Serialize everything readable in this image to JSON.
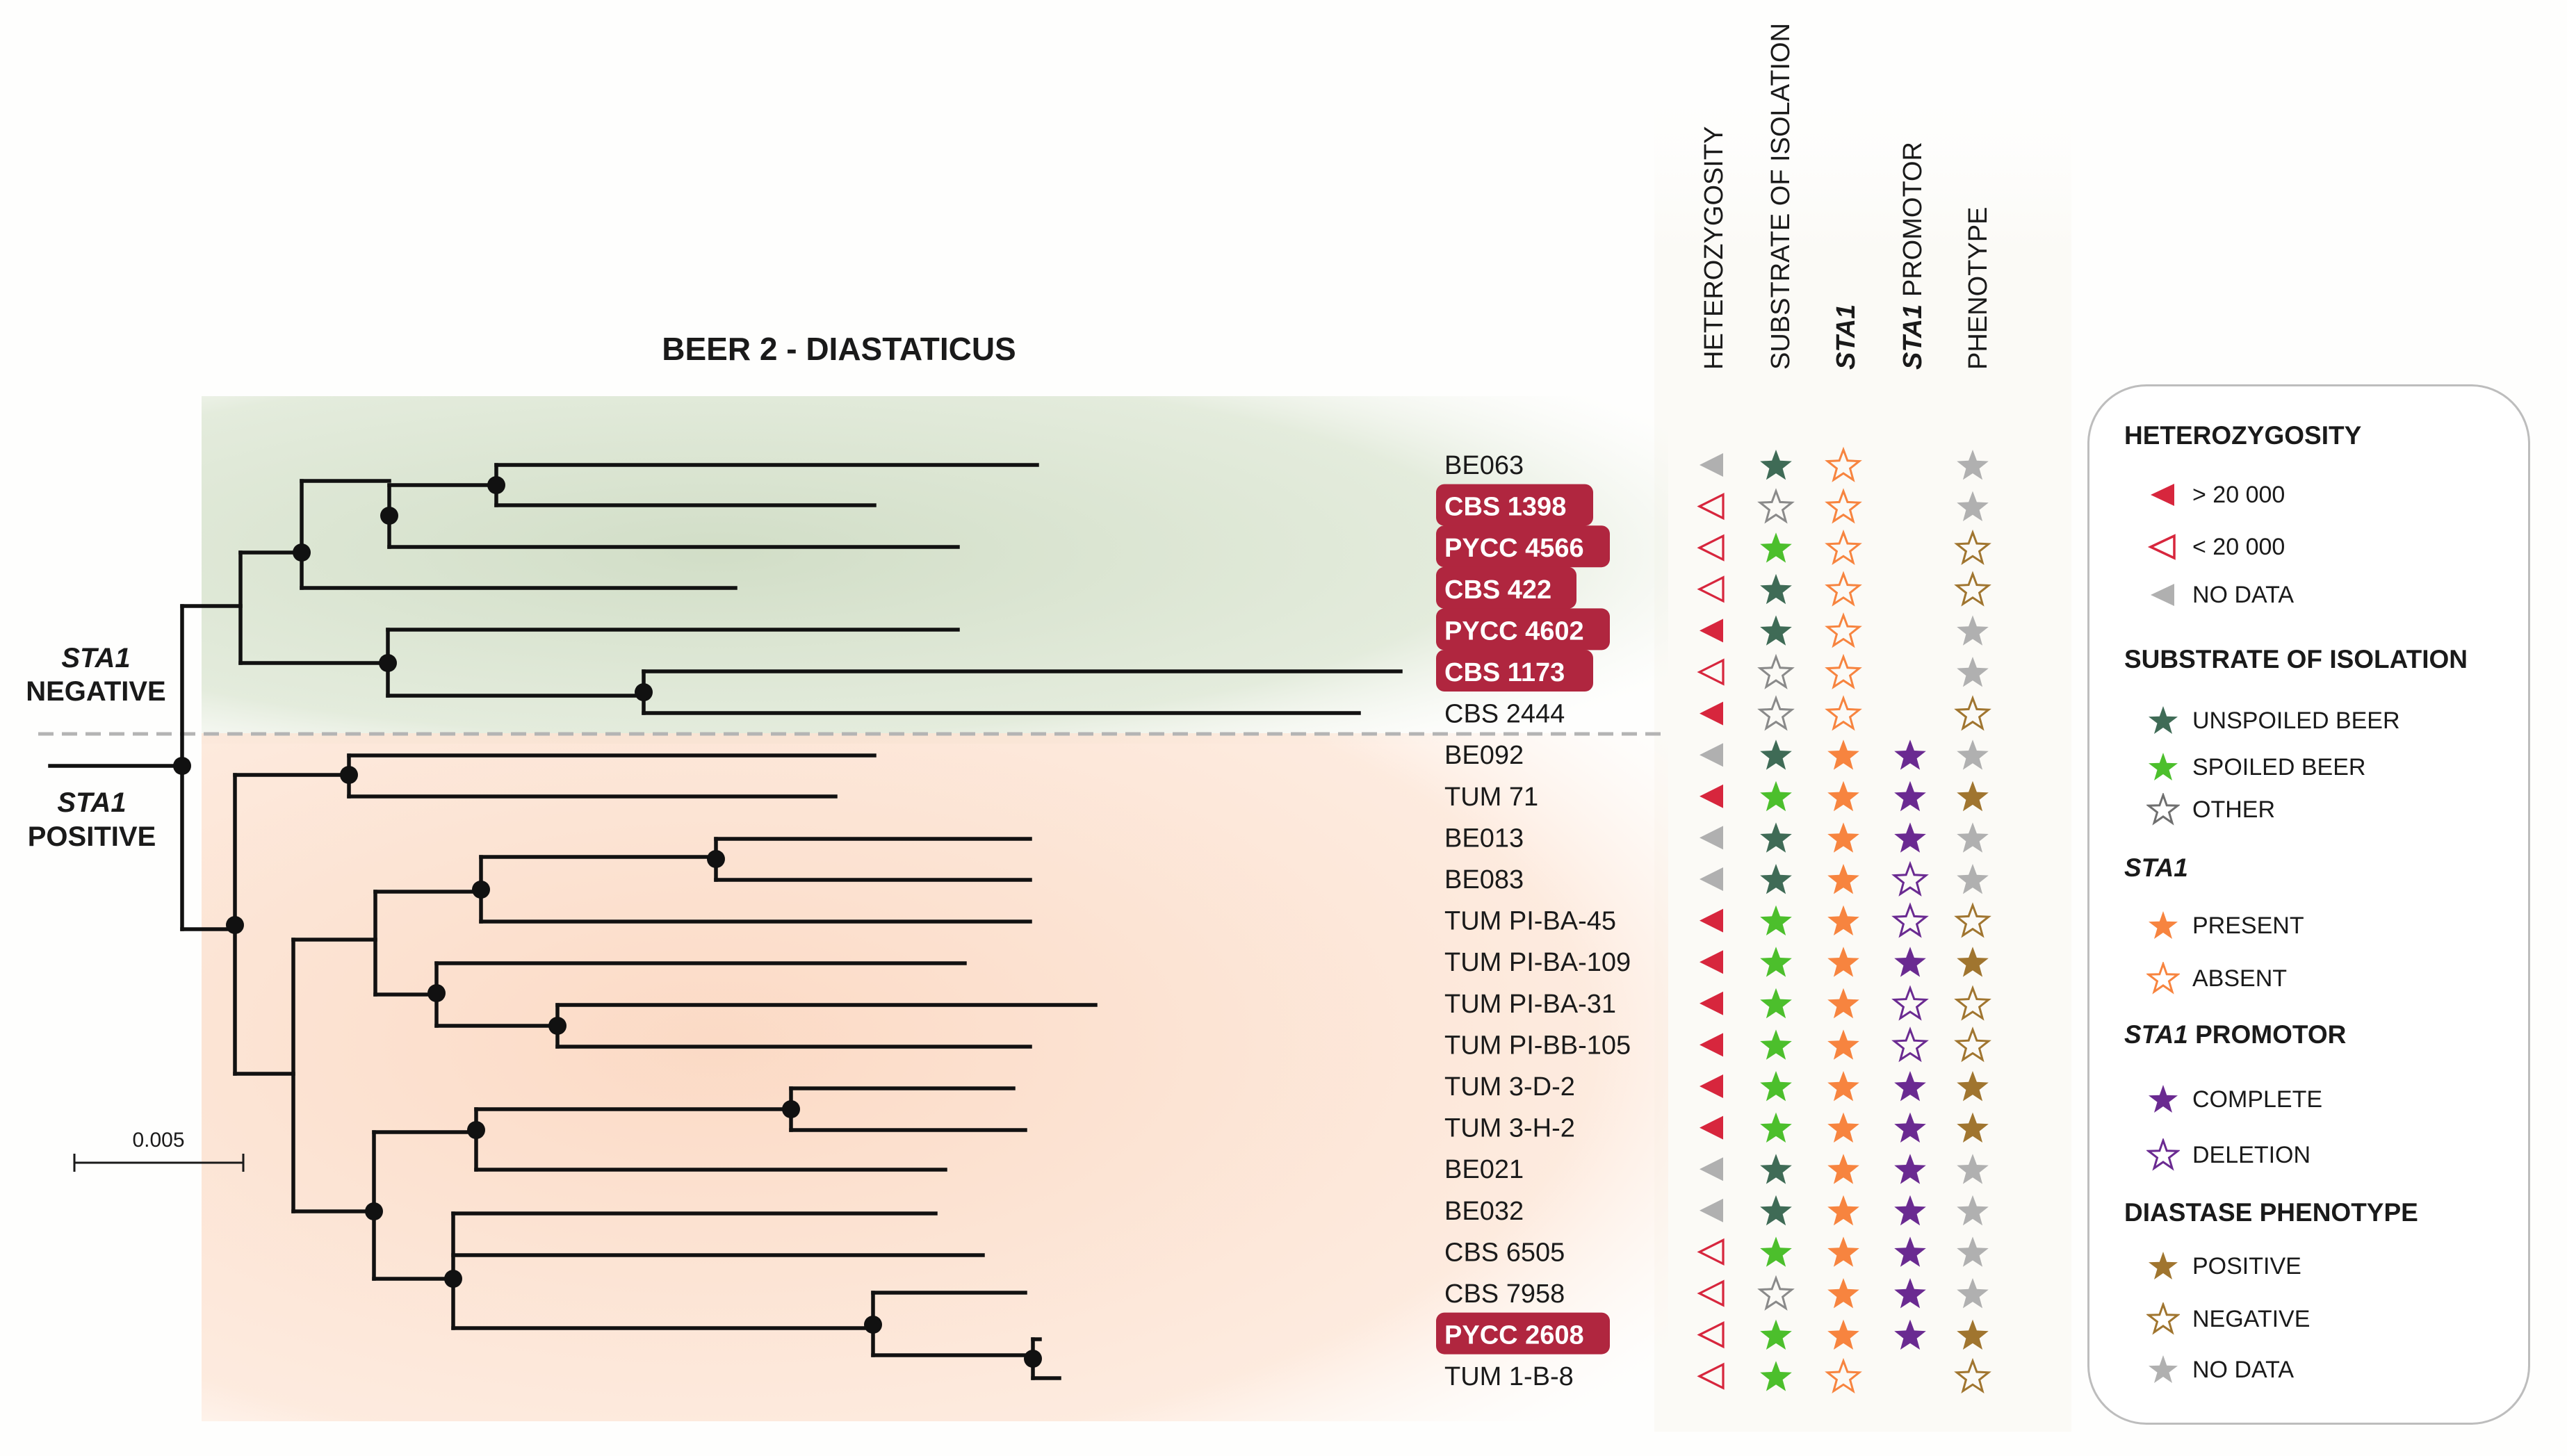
{
  "title": "BEER 2 - DIASTATICUS",
  "group_labels": {
    "negative_gene": "STA1",
    "negative_word": "NEGATIVE",
    "positive_gene": "STA1",
    "positive_word": "POSITIVE"
  },
  "scale_bar": "0.005",
  "column_headers": {
    "heterozygosity": "HETEROZYGOSITY",
    "substrate": "SUBSTRATE OF ISOLATION",
    "sta1": "STA1",
    "promotor_gene": "STA1",
    "promotor_word": " PROMOTOR",
    "phenotype": "PHENOTYPE"
  },
  "colors": {
    "het_high": "#d7263d",
    "het_nodata": "#b0b0b0",
    "unspoiled": "#3f6b56",
    "spoiled": "#4cbf2c",
    "other": "#8a8a8a",
    "sta1": "#f7843f",
    "promotor": "#6a2a91",
    "pheno_pos": "#a0752f",
    "pheno_nodata": "#b0b0b0",
    "highlight": "#b0263f",
    "negative_bg": "#dfe8d8",
    "positive_bg": "#fde3d3"
  },
  "strains": [
    {
      "name": "BE063",
      "highlight": false,
      "het": "nodata",
      "substrate": "unspoiled",
      "sta1": "absent",
      "promotor": "none",
      "phenotype": "nodata"
    },
    {
      "name": "CBS 1398",
      "highlight": true,
      "het": "low",
      "substrate": "other",
      "sta1": "absent",
      "promotor": "none",
      "phenotype": "nodata"
    },
    {
      "name": "PYCC 4566",
      "highlight": true,
      "het": "low",
      "substrate": "spoiled",
      "sta1": "absent",
      "promotor": "none",
      "phenotype": "negative"
    },
    {
      "name": "CBS 422",
      "highlight": true,
      "het": "low",
      "substrate": "unspoiled",
      "sta1": "absent",
      "promotor": "none",
      "phenotype": "negative"
    },
    {
      "name": "PYCC 4602",
      "highlight": true,
      "het": "high",
      "substrate": "unspoiled",
      "sta1": "absent",
      "promotor": "none",
      "phenotype": "nodata"
    },
    {
      "name": "CBS 1173",
      "highlight": true,
      "het": "low",
      "substrate": "other",
      "sta1": "absent",
      "promotor": "none",
      "phenotype": "nodata"
    },
    {
      "name": "CBS 2444",
      "highlight": false,
      "het": "high",
      "substrate": "other",
      "sta1": "absent",
      "promotor": "none",
      "phenotype": "negative"
    },
    {
      "name": "BE092",
      "highlight": false,
      "het": "nodata",
      "substrate": "unspoiled",
      "sta1": "present",
      "promotor": "complete",
      "phenotype": "nodata"
    },
    {
      "name": "TUM 71",
      "highlight": false,
      "het": "high",
      "substrate": "spoiled",
      "sta1": "present",
      "promotor": "complete",
      "phenotype": "positive"
    },
    {
      "name": "BE013",
      "highlight": false,
      "het": "nodata",
      "substrate": "unspoiled",
      "sta1": "present",
      "promotor": "complete",
      "phenotype": "nodata"
    },
    {
      "name": "BE083",
      "highlight": false,
      "het": "nodata",
      "substrate": "unspoiled",
      "sta1": "present",
      "promotor": "deletion",
      "phenotype": "nodata"
    },
    {
      "name": "TUM PI-BA-45",
      "highlight": false,
      "het": "high",
      "substrate": "spoiled",
      "sta1": "present",
      "promotor": "deletion",
      "phenotype": "negative"
    },
    {
      "name": "TUM PI-BA-109",
      "highlight": false,
      "het": "high",
      "substrate": "spoiled",
      "sta1": "present",
      "promotor": "complete",
      "phenotype": "positive"
    },
    {
      "name": "TUM PI-BA-31",
      "highlight": false,
      "het": "high",
      "substrate": "spoiled",
      "sta1": "present",
      "promotor": "deletion",
      "phenotype": "negative"
    },
    {
      "name": "TUM PI-BB-105",
      "highlight": false,
      "het": "high",
      "substrate": "spoiled",
      "sta1": "present",
      "promotor": "deletion",
      "phenotype": "negative"
    },
    {
      "name": "TUM 3-D-2",
      "highlight": false,
      "het": "high",
      "substrate": "spoiled",
      "sta1": "present",
      "promotor": "complete",
      "phenotype": "positive"
    },
    {
      "name": "TUM 3-H-2",
      "highlight": false,
      "het": "high",
      "substrate": "spoiled",
      "sta1": "present",
      "promotor": "complete",
      "phenotype": "positive"
    },
    {
      "name": "BE021",
      "highlight": false,
      "het": "nodata",
      "substrate": "unspoiled",
      "sta1": "present",
      "promotor": "complete",
      "phenotype": "nodata"
    },
    {
      "name": "BE032",
      "highlight": false,
      "het": "nodata",
      "substrate": "unspoiled",
      "sta1": "present",
      "promotor": "complete",
      "phenotype": "nodata"
    },
    {
      "name": "CBS 6505",
      "highlight": false,
      "het": "low",
      "substrate": "spoiled",
      "sta1": "present",
      "promotor": "complete",
      "phenotype": "nodata"
    },
    {
      "name": "CBS 7958",
      "highlight": false,
      "het": "low",
      "substrate": "other",
      "sta1": "present",
      "promotor": "complete",
      "phenotype": "nodata"
    },
    {
      "name": "PYCC 2608",
      "highlight": true,
      "het": "low",
      "substrate": "spoiled",
      "sta1": "present",
      "promotor": "complete",
      "phenotype": "positive"
    },
    {
      "name": "TUM 1-B-8",
      "highlight": false,
      "het": "low",
      "substrate": "spoiled",
      "sta1": "absent",
      "promotor": "none",
      "phenotype": "negative"
    }
  ],
  "legend": {
    "heterozygosity": {
      "title": "HETEROZYGOSITY",
      "high": "> 20 000",
      "low": "< 20 000",
      "nodata": "NO DATA"
    },
    "substrate": {
      "title": "SUBSTRATE OF ISOLATION",
      "unspoiled": "UNSPOILED BEER",
      "spoiled": "SPOILED BEER",
      "other": "OTHER"
    },
    "sta1": {
      "title": "STA1",
      "present": "PRESENT",
      "absent": "ABSENT"
    },
    "promotor": {
      "title_gene": "STA1",
      "title_word": " PROMOTOR",
      "complete": "COMPLETE",
      "deletion": "DELETION"
    },
    "phenotype": {
      "title": "DIASTASE PHENOTYPE",
      "positive": "POSITIVE",
      "negative": "NEGATIVE",
      "nodata": "NO DATA"
    }
  }
}
